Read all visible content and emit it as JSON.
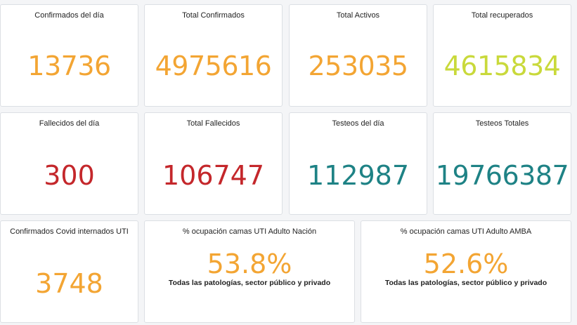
{
  "colors": {
    "orange": "#f3a533",
    "lime": "#c9d93b",
    "red": "#c4272b",
    "teal": "#1e8285"
  },
  "panels": {
    "confirmados_dia": {
      "title": "Confirmados del día",
      "value": "13736"
    },
    "total_confirmados": {
      "title": "Total Confirmados",
      "value": "4975616"
    },
    "total_activos": {
      "title": "Total Activos",
      "value": "253035"
    },
    "total_recuperados": {
      "title": "Total recuperados",
      "value": "4615834"
    },
    "fallecidos_dia": {
      "title": "Fallecidos del día",
      "value": "300"
    },
    "total_fallecidos": {
      "title": "Total Fallecidos",
      "value": "106747"
    },
    "testeos_dia": {
      "title": "Testeos del día",
      "value": "112987"
    },
    "testeos_totales": {
      "title": "Testeos Totales",
      "value": "19766387"
    },
    "internados_uti": {
      "title": "Confirmados Covid internados UTI",
      "value": "3748"
    },
    "uti_nacion": {
      "title": "% ocupación camas UTI Adulto Nación",
      "value": "53.8%",
      "subtitle": "Todas las patologías, sector público y privado"
    },
    "uti_amba": {
      "title": "% ocupación camas UTI Adulto AMBA",
      "value": "52.6%",
      "subtitle": "Todas las patologías, sector público y privado"
    }
  }
}
